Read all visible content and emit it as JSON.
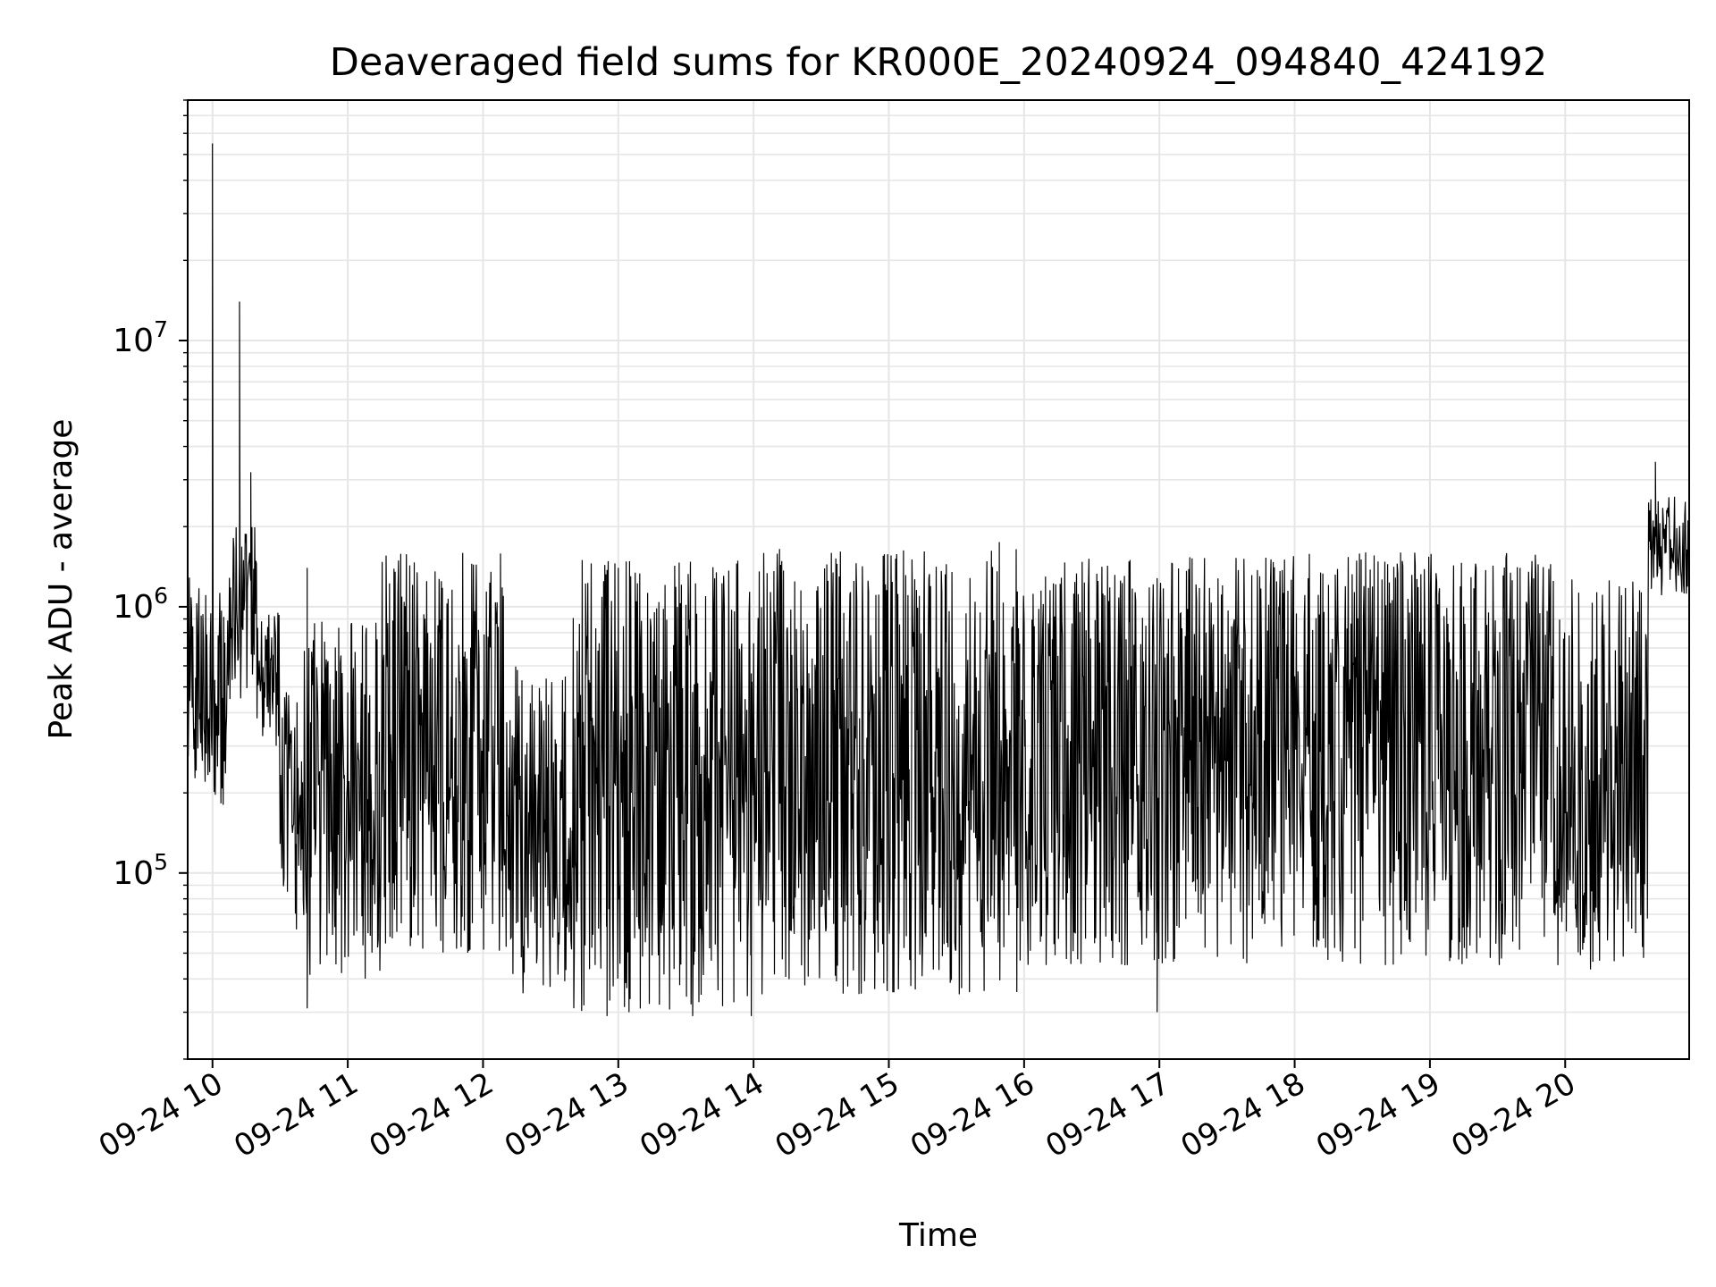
{
  "chart_data": {
    "type": "line",
    "title": "Deaveraged field sums for KR000E_20240924_094840_424192",
    "xlabel": "Time",
    "ylabel": "Peak ADU - average",
    "xlim": [
      "2024-09-24 09:49",
      "2024-09-24 20:55"
    ],
    "xticks": [
      "09-24 10",
      "09-24 11",
      "09-24 12",
      "09-24 13",
      "09-24 14",
      "09-24 15",
      "09-24 16",
      "09-24 17",
      "09-24 18",
      "09-24 19",
      "09-24 20"
    ],
    "yscale": "log",
    "ylim": [
      20000,
      80000000
    ],
    "yticks": [
      {
        "base": "10",
        "exp": "5",
        "value": 100000
      },
      {
        "base": "10",
        "exp": "6",
        "value": 1000000
      },
      {
        "base": "10",
        "exp": "7",
        "value": 10000000
      }
    ],
    "grid": true,
    "colors": {
      "series": "#000000",
      "grid": "#e6e6e6"
    },
    "series": [
      {
        "segments": [
          {
            "start": "2024-09-24 09:49",
            "end": "2024-09-24 10:08",
            "lo": 180000,
            "hi": 1300000
          },
          {
            "start": "2024-09-24 10:08",
            "end": "2024-09-24 10:20",
            "lo": 380000,
            "hi": 2000000
          },
          {
            "start": "2024-09-24 10:20",
            "end": "2024-09-24 10:30",
            "lo": 300000,
            "hi": 1000000
          },
          {
            "start": "2024-09-24 10:30",
            "end": "2024-09-24 10:40",
            "lo": 60000,
            "hi": 500000
          },
          {
            "start": "2024-09-24 10:40",
            "end": "2024-09-24 11:15",
            "lo": 40000,
            "hi": 900000
          },
          {
            "start": "2024-09-24 11:15",
            "end": "2024-09-24 12:10",
            "lo": 50000,
            "hi": 1600000
          },
          {
            "start": "2024-09-24 12:10",
            "end": "2024-09-24 12:40",
            "lo": 35000,
            "hi": 600000
          },
          {
            "start": "2024-09-24 12:40",
            "end": "2024-09-24 14:00",
            "lo": 30000,
            "hi": 1500000
          },
          {
            "start": "2024-09-24 14:00",
            "end": "2024-09-24 16:00",
            "lo": 35000,
            "hi": 1650000
          },
          {
            "start": "2024-09-24 16:00",
            "end": "2024-09-24 18:00",
            "lo": 45000,
            "hi": 1550000
          },
          {
            "start": "2024-09-24 18:00",
            "end": "2024-09-24 20:00",
            "lo": 45000,
            "hi": 1600000
          },
          {
            "start": "2024-09-24 20:00",
            "end": "2024-09-24 20:37",
            "lo": 40000,
            "hi": 1300000
          },
          {
            "start": "2024-09-24 20:37",
            "end": "2024-09-24 20:55",
            "lo": 1100000,
            "hi": 2600000
          }
        ],
        "spikes": [
          {
            "x": "2024-09-24 10:00",
            "y": 55000000
          },
          {
            "x": "2024-09-24 10:12",
            "y": 14000000
          },
          {
            "x": "2024-09-24 10:17",
            "y": 3200000
          },
          {
            "x": "2024-09-24 15:49",
            "y": 1750000
          },
          {
            "x": "2024-09-24 20:40",
            "y": 3500000
          },
          {
            "x": "2024-09-24 10:42",
            "y": 1400000
          }
        ],
        "dips": [
          {
            "x": "2024-09-24 10:42",
            "y": 31000
          },
          {
            "x": "2024-09-24 12:55",
            "y": 29000
          },
          {
            "x": "2024-09-24 13:33",
            "y": 29000
          },
          {
            "x": "2024-09-24 13:59",
            "y": 29000
          },
          {
            "x": "2024-09-24 16:59",
            "y": 30000
          }
        ]
      }
    ]
  }
}
